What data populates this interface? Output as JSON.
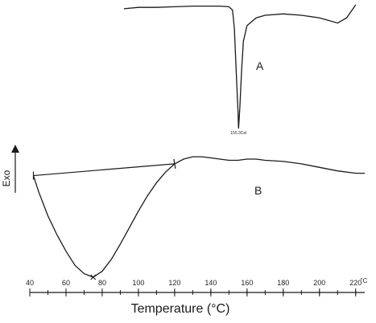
{
  "chart_data": {
    "type": "line",
    "xlabel": "Temperature (°C)",
    "ylabel": "Exo",
    "xunit": "°C",
    "xlim": [
      40,
      225
    ],
    "xticks": [
      40,
      60,
      80,
      100,
      120,
      140,
      160,
      180,
      200,
      220
    ],
    "series": [
      {
        "name": "A",
        "peak_label": "155.3Cel",
        "peak_x": 155.3,
        "x": [
          92,
          100,
          110,
          120,
          130,
          140,
          145,
          150,
          152,
          153,
          154,
          155,
          155.3,
          156,
          157,
          158,
          160,
          165,
          170,
          180,
          190,
          200,
          205,
          210,
          215,
          220
        ],
        "y": [
          0.97,
          0.98,
          0.98,
          0.985,
          0.99,
          0.99,
          0.99,
          0.985,
          0.96,
          0.82,
          0.5,
          0.18,
          0.05,
          0.2,
          0.5,
          0.72,
          0.84,
          0.9,
          0.92,
          0.93,
          0.92,
          0.9,
          0.88,
          0.86,
          0.9,
          1.0
        ]
      },
      {
        "name": "B",
        "x": [
          42,
          45,
          50,
          55,
          60,
          65,
          70,
          75,
          80,
          85,
          90,
          95,
          100,
          105,
          110,
          115,
          120,
          125,
          130,
          135,
          140,
          145,
          150,
          155,
          160,
          165,
          170,
          180,
          190,
          200,
          210,
          220,
          225
        ],
        "y": [
          0.86,
          0.72,
          0.52,
          0.36,
          0.22,
          0.1,
          0.03,
          0.0,
          0.05,
          0.15,
          0.28,
          0.42,
          0.56,
          0.69,
          0.8,
          0.89,
          0.96,
          1.0,
          1.02,
          1.02,
          1.01,
          1.0,
          0.99,
          0.99,
          1.0,
          1.0,
          0.99,
          0.98,
          0.96,
          0.93,
          0.9,
          0.88,
          0.88
        ]
      }
    ],
    "baseline": {
      "x": [
        42,
        120
      ],
      "y": [
        0.86,
        0.96
      ]
    },
    "integration_limits": [
      42,
      120
    ],
    "min_marker_x": 75
  }
}
